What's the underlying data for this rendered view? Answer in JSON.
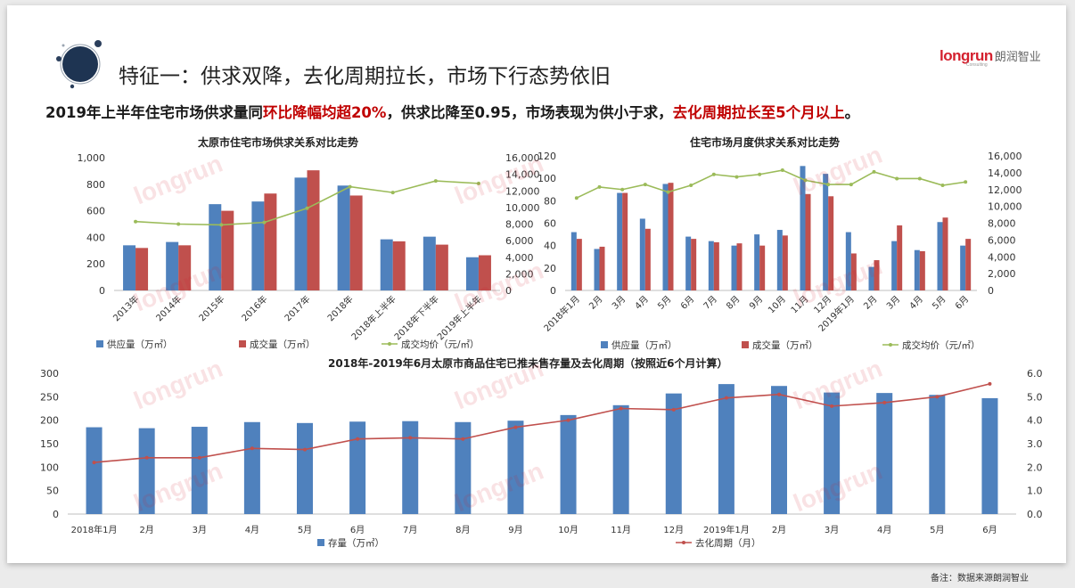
{
  "header": {
    "title": "特征一：供求双降，去化周期拉长，市场下行态势依旧",
    "logo_en": "longrun",
    "logo_cn": "朗润智业",
    "logo_sub": "Consulting"
  },
  "summary": {
    "part1": "2019年上半年住宅市场供求量同",
    "part2": "环比降幅均超20%",
    "part3": "，供求比降至0.95，市场表现为供小于求，",
    "part4": "去化周期拉长至5个月以上",
    "part5": "。"
  },
  "footer_note": "备注：数据来源朗润智业",
  "colors": {
    "supply": "#4f81bd",
    "deal": "#c0504d",
    "price": "#9bbb59",
    "inventory": "#4f81bd",
    "cycle": "#c0504d",
    "highlight": "#c00000"
  },
  "chart_data": [
    {
      "type": "bar",
      "title": "太原市住宅市场供求关系对比走势",
      "categories": [
        "2013年",
        "2014年",
        "2015年",
        "2016年",
        "2017年",
        "2018年",
        "2018年上半年",
        "2018年下半年",
        "2019年上半年"
      ],
      "series": [
        {
          "name": "供应量（万㎡）",
          "values": [
            340,
            365,
            650,
            670,
            850,
            790,
            385,
            405,
            250
          ]
        },
        {
          "name": "成交量（万㎡）",
          "values": [
            320,
            340,
            600,
            730,
            905,
            715,
            370,
            345,
            265
          ]
        },
        {
          "name": "成交均价（元/㎡）",
          "type": "line",
          "axis": "right",
          "values": [
            8300,
            8000,
            7900,
            8200,
            9900,
            12500,
            11800,
            13200,
            12900
          ]
        }
      ],
      "y_left": {
        "lim": [
          0,
          1000
        ],
        "ticks": [
          "0",
          "200",
          "400",
          "600",
          "800",
          "1,000"
        ]
      },
      "y_right": {
        "lim": [
          0,
          16000
        ],
        "ticks": [
          "0",
          "2,000",
          "4,000",
          "6,000",
          "8,000",
          "10,000",
          "12,000",
          "14,000",
          "16,000"
        ]
      },
      "legend": "bottom"
    },
    {
      "type": "bar",
      "title": "住宅市场月度供求关系对比走势",
      "categories": [
        "2018年1月",
        "2月",
        "3月",
        "4月",
        "5月",
        "6月",
        "7月",
        "8月",
        "9月",
        "10月",
        "11月",
        "12月",
        "2019年1月",
        "2月",
        "3月",
        "4月",
        "5月",
        "6月"
      ],
      "series": [
        {
          "name": "供应量（万㎡）",
          "values": [
            52,
            37,
            87,
            64,
            95,
            48,
            44,
            40,
            50,
            54,
            111,
            104,
            52,
            21,
            44,
            36,
            61,
            40
          ]
        },
        {
          "name": "成交量（万㎡）",
          "values": [
            46,
            39,
            87,
            55,
            96,
            46,
            43,
            42,
            40,
            49,
            86,
            84,
            33,
            27,
            58,
            35,
            65,
            46
          ]
        },
        {
          "name": "成交均价（元/㎡）",
          "type": "line",
          "axis": "right",
          "values": [
            11000,
            12300,
            12000,
            12600,
            11700,
            12500,
            13800,
            13500,
            13800,
            14300,
            13100,
            12600,
            12600,
            14100,
            13300,
            13300,
            12500,
            12900
          ]
        }
      ],
      "y_left": {
        "lim": [
          0,
          120
        ],
        "ticks": [
          "0",
          "20",
          "40",
          "60",
          "80",
          "100",
          "120"
        ]
      },
      "y_right": {
        "lim": [
          0,
          16000
        ],
        "ticks": [
          "0",
          "2,000",
          "4,000",
          "6,000",
          "8,000",
          "10,000",
          "12,000",
          "14,000",
          "16,000"
        ]
      },
      "legend": "bottom"
    },
    {
      "type": "bar",
      "title": "2018年-2019年6月太原市商品住宅已推未售存量及去化周期（按照近6个月计算）",
      "categories": [
        "2018年1月",
        "2月",
        "3月",
        "4月",
        "5月",
        "6月",
        "7月",
        "8月",
        "9月",
        "10月",
        "11月",
        "12月",
        "2019年1月",
        "2月",
        "3月",
        "4月",
        "5月",
        "6月"
      ],
      "series": [
        {
          "name": "存量（万㎡）",
          "values": [
            185,
            183,
            186,
            196,
            194,
            197,
            198,
            196,
            199,
            211,
            232,
            257,
            277,
            273,
            259,
            258,
            254,
            247
          ]
        },
        {
          "name": "去化周期（月）",
          "type": "line",
          "axis": "right",
          "values": [
            2.2,
            2.4,
            2.4,
            2.8,
            2.75,
            3.2,
            3.25,
            3.2,
            3.7,
            4.0,
            4.5,
            4.45,
            4.95,
            5.1,
            4.6,
            4.75,
            5.0,
            5.55
          ]
        }
      ],
      "y_left": {
        "lim": [
          0,
          300
        ],
        "ticks": [
          "0",
          "50",
          "100",
          "150",
          "200",
          "250",
          "300"
        ]
      },
      "y_right": {
        "lim": [
          0,
          6
        ],
        "ticks": [
          "0.0",
          "1.0",
          "2.0",
          "3.0",
          "4.0",
          "5.0",
          "6.0"
        ]
      },
      "legend": "bottom"
    }
  ]
}
